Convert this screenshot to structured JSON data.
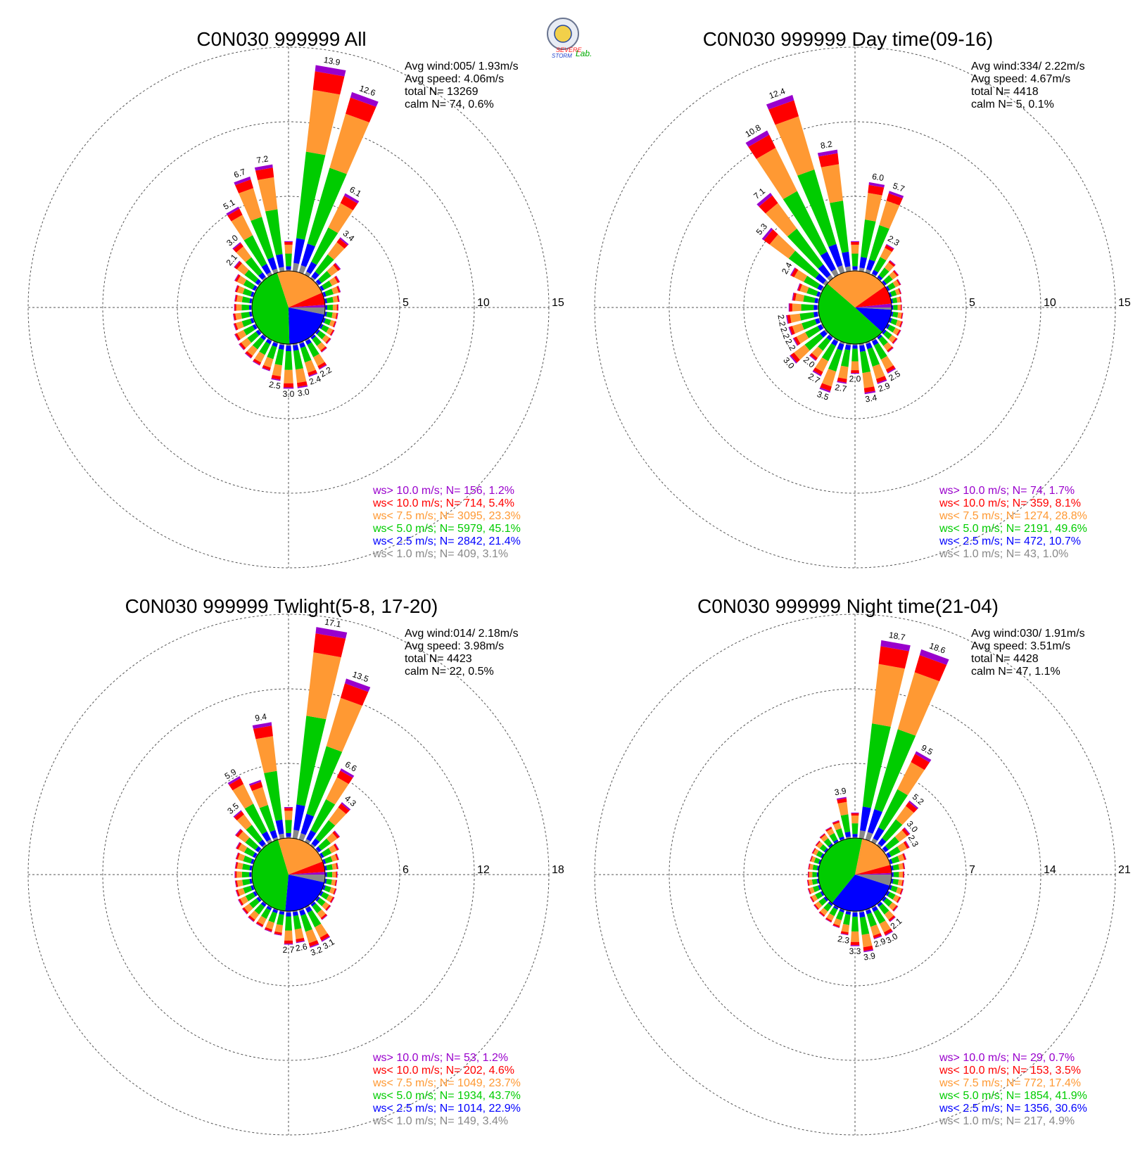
{
  "logo": {
    "text_line1": "SEVERE",
    "text_line2": "STORM",
    "text_line3": "Lab."
  },
  "legend_colors": {
    "gt10": "#9900cc",
    "lt10": "#ff0000",
    "lt75": "#ff9933",
    "lt50": "#00cc00",
    "lt25": "#0000ff",
    "lt10ms": "#888888"
  },
  "chart_data": [
    {
      "type": "windrose",
      "title": "C0N030 999999 All",
      "info": {
        "avg_wind": "Avg wind:005/ 1.93m/s",
        "avg_speed": "Avg speed: 4.06m/s",
        "total_n": "total N=      13269",
        "calm_n": "calm N=     74,   0.6%"
      },
      "rings": [
        5,
        10,
        15
      ],
      "ring_labels": [
        "5",
        "10",
        "15"
      ],
      "legend": [
        "ws> 10.0 m/s; N=   156,  1.2%",
        "ws< 10.0 m/s; N=   714,  5.4%",
        "ws<  7.5 m/s; N=  3095, 23.3%",
        "ws<  5.0 m/s; N=  5979, 45.1%",
        "ws<  2.5 m/s; N=  2842, 21.4%",
        "ws<  1.0 m/s; N=   409,  3.1%"
      ],
      "pie": [
        3.1,
        21.4,
        45.1,
        23.3,
        5.4,
        1.2
      ],
      "directions": [
        {
          "dir": 10,
          "total": 13.9,
          "label": "13.9"
        },
        {
          "dir": 20,
          "total": 12.6,
          "label": "12.6"
        },
        {
          "dir": 30,
          "total": 6.1,
          "label": "6.1"
        },
        {
          "dir": 40,
          "total": 3.4,
          "label": "3.4"
        },
        {
          "dir": 50,
          "total": 1.9
        },
        {
          "dir": 60,
          "total": 1.4
        },
        {
          "dir": 70,
          "total": 1.2
        },
        {
          "dir": 80,
          "total": 1.0
        },
        {
          "dir": 90,
          "total": 0.9
        },
        {
          "dir": 100,
          "total": 0.9
        },
        {
          "dir": 110,
          "total": 0.9
        },
        {
          "dir": 120,
          "total": 1.0
        },
        {
          "dir": 130,
          "total": 1.1
        },
        {
          "dir": 140,
          "total": 1.3
        },
        {
          "dir": 150,
          "total": 2.2,
          "label": "2.2"
        },
        {
          "dir": 160,
          "total": 2.4,
          "label": "2.4"
        },
        {
          "dir": 170,
          "total": 3.0,
          "label": "3.0"
        },
        {
          "dir": 180,
          "total": 3.0,
          "label": "3.0"
        },
        {
          "dir": 190,
          "total": 2.5,
          "label": "2.5"
        },
        {
          "dir": 200,
          "total": 2.0
        },
        {
          "dir": 210,
          "total": 1.9
        },
        {
          "dir": 220,
          "total": 1.8
        },
        {
          "dir": 230,
          "total": 1.7
        },
        {
          "dir": 240,
          "total": 1.6
        },
        {
          "dir": 250,
          "total": 1.4
        },
        {
          "dir": 260,
          "total": 1.3
        },
        {
          "dir": 270,
          "total": 1.2
        },
        {
          "dir": 280,
          "total": 1.2
        },
        {
          "dir": 290,
          "total": 1.3
        },
        {
          "dir": 300,
          "total": 1.6
        },
        {
          "dir": 310,
          "total": 2.1,
          "label": "2.1"
        },
        {
          "dir": 320,
          "total": 3.0,
          "label": "3.0"
        },
        {
          "dir": 330,
          "total": 5.1,
          "label": "5.1"
        },
        {
          "dir": 340,
          "total": 6.7,
          "label": "6.7"
        },
        {
          "dir": 350,
          "total": 7.2,
          "label": "7.2"
        },
        {
          "dir": 360,
          "total": 2.0
        }
      ]
    },
    {
      "type": "windrose",
      "title": "C0N030 999999 Day time(09-16)",
      "info": {
        "avg_wind": "Avg wind:334/ 2.22m/s",
        "avg_speed": "Avg speed: 4.67m/s",
        "total_n": "total N=       4418",
        "calm_n": "calm N=      5,   0.1%"
      },
      "rings": [
        5,
        10,
        15
      ],
      "ring_labels": [
        "5",
        "10",
        "15"
      ],
      "legend": [
        "ws> 10.0 m/s; N=    74,  1.7%",
        "ws< 10.0 m/s; N=   359,  8.1%",
        "ws<  7.5 m/s; N=  1274, 28.8%",
        "ws<  5.0 m/s; N=  2191, 49.6%",
        "ws<  2.5 m/s; N=   472, 10.7%",
        "ws<  1.0 m/s; N=    43,  1.0%"
      ],
      "pie": [
        1.0,
        10.7,
        49.6,
        28.8,
        8.1,
        1.7
      ],
      "directions": [
        {
          "dir": 10,
          "total": 6.0,
          "label": "6.0"
        },
        {
          "dir": 20,
          "total": 5.7,
          "label": "5.7"
        },
        {
          "dir": 30,
          "total": 2.3,
          "label": "2.3"
        },
        {
          "dir": 40,
          "total": 1.5
        },
        {
          "dir": 50,
          "total": 1.2
        },
        {
          "dir": 60,
          "total": 1.0
        },
        {
          "dir": 70,
          "total": 0.8
        },
        {
          "dir": 80,
          "total": 0.7
        },
        {
          "dir": 90,
          "total": 0.7
        },
        {
          "dir": 100,
          "total": 0.8
        },
        {
          "dir": 110,
          "total": 0.9
        },
        {
          "dir": 120,
          "total": 1.0
        },
        {
          "dir": 130,
          "total": 1.1
        },
        {
          "dir": 140,
          "total": 1.3
        },
        {
          "dir": 150,
          "total": 2.5,
          "label": "2.5"
        },
        {
          "dir": 160,
          "total": 2.9,
          "label": "2.9"
        },
        {
          "dir": 170,
          "total": 3.4,
          "label": "3.4"
        },
        {
          "dir": 180,
          "total": 2.0,
          "label": "2.0"
        },
        {
          "dir": 190,
          "total": 2.7,
          "label": "2.7"
        },
        {
          "dir": 200,
          "total": 3.5,
          "label": "3.5"
        },
        {
          "dir": 210,
          "total": 2.7,
          "label": "2.7"
        },
        {
          "dir": 220,
          "total": 2.0,
          "label": "2.0"
        },
        {
          "dir": 230,
          "total": 3.0,
          "label": "3.0"
        },
        {
          "dir": 240,
          "total": 2.2,
          "label": "2.2"
        },
        {
          "dir": 250,
          "total": 2.2,
          "label": "2.2"
        },
        {
          "dir": 260,
          "total": 2.2,
          "label": "2.2"
        },
        {
          "dir": 270,
          "total": 2.0
        },
        {
          "dir": 280,
          "total": 1.8
        },
        {
          "dir": 290,
          "total": 1.6
        },
        {
          "dir": 300,
          "total": 2.4,
          "label": "2.4"
        },
        {
          "dir": 310,
          "total": 5.3,
          "label": "5.3"
        },
        {
          "dir": 320,
          "total": 7.1,
          "label": "7.1"
        },
        {
          "dir": 330,
          "total": 10.8,
          "label": "10.8"
        },
        {
          "dir": 340,
          "total": 12.4,
          "label": "12.4"
        },
        {
          "dir": 350,
          "total": 8.2,
          "label": "8.2"
        },
        {
          "dir": 360,
          "total": 2.0
        }
      ]
    },
    {
      "type": "windrose",
      "title": "C0N030 999999 Twlight(5-8, 17-20)",
      "info": {
        "avg_wind": "Avg wind:014/ 2.18m/s",
        "avg_speed": "Avg speed: 3.98m/s",
        "total_n": "total N=       4423",
        "calm_n": "calm N=     22,   0.5%"
      },
      "rings": [
        6,
        12,
        18
      ],
      "ring_labels": [
        "6",
        "12",
        "18"
      ],
      "legend": [
        "ws> 10.0 m/s; N=    53,  1.2%",
        "ws< 10.0 m/s; N=   202,  4.6%",
        "ws<  7.5 m/s; N=  1049, 23.7%",
        "ws<  5.0 m/s; N=  1934, 43.7%",
        "ws<  2.5 m/s; N=  1014, 22.9%",
        "ws<  1.0 m/s; N=   149,  3.4%"
      ],
      "pie": [
        3.4,
        22.9,
        43.7,
        23.7,
        4.6,
        1.2
      ],
      "directions": [
        {
          "dir": 10,
          "total": 17.1,
          "label": "17.1"
        },
        {
          "dir": 20,
          "total": 13.5,
          "label": "13.5"
        },
        {
          "dir": 30,
          "total": 6.6,
          "label": "6.6"
        },
        {
          "dir": 40,
          "total": 4.3,
          "label": "4.3"
        },
        {
          "dir": 50,
          "total": 2.2
        },
        {
          "dir": 60,
          "total": 1.6
        },
        {
          "dir": 70,
          "total": 1.3
        },
        {
          "dir": 80,
          "total": 1.1
        },
        {
          "dir": 90,
          "total": 1.0
        },
        {
          "dir": 100,
          "total": 1.0
        },
        {
          "dir": 110,
          "total": 1.1
        },
        {
          "dir": 120,
          "total": 1.2
        },
        {
          "dir": 130,
          "total": 1.3
        },
        {
          "dir": 140,
          "total": 1.6
        },
        {
          "dir": 150,
          "total": 3.1,
          "label": "3.1"
        },
        {
          "dir": 160,
          "total": 3.2,
          "label": "3.2"
        },
        {
          "dir": 170,
          "total": 2.6,
          "label": "2.6"
        },
        {
          "dir": 180,
          "total": 2.7,
          "label": "2.7"
        },
        {
          "dir": 190,
          "total": 2.0
        },
        {
          "dir": 200,
          "total": 1.9
        },
        {
          "dir": 210,
          "total": 1.8
        },
        {
          "dir": 220,
          "total": 1.8
        },
        {
          "dir": 230,
          "total": 1.7
        },
        {
          "dir": 240,
          "total": 1.6
        },
        {
          "dir": 250,
          "total": 1.5
        },
        {
          "dir": 260,
          "total": 1.4
        },
        {
          "dir": 270,
          "total": 1.4
        },
        {
          "dir": 280,
          "total": 1.4
        },
        {
          "dir": 290,
          "total": 1.5
        },
        {
          "dir": 300,
          "total": 1.8
        },
        {
          "dir": 310,
          "total": 2.4
        },
        {
          "dir": 320,
          "total": 3.5,
          "label": "3.5"
        },
        {
          "dir": 330,
          "total": 5.9,
          "label": "5.9"
        },
        {
          "dir": 340,
          "total": 5.0
        },
        {
          "dir": 350,
          "total": 9.4,
          "label": "9.4"
        },
        {
          "dir": 360,
          "total": 2.5
        }
      ]
    },
    {
      "type": "windrose",
      "title": "C0N030 999999 Night time(21-04)",
      "info": {
        "avg_wind": "Avg wind:030/ 1.91m/s",
        "avg_speed": "Avg speed: 3.51m/s",
        "total_n": "total N=       4428",
        "calm_n": "calm N=     47,   1.1%"
      },
      "rings": [
        7,
        14,
        21
      ],
      "ring_labels": [
        "7",
        "14",
        "21"
      ],
      "legend": [
        "ws> 10.0 m/s; N=    29,  0.7%",
        "ws< 10.0 m/s; N=   153,  3.5%",
        "ws<  7.5 m/s; N=   772, 17.4%",
        "ws<  5.0 m/s; N=  1854, 41.9%",
        "ws<  2.5 m/s; N=  1356, 30.6%",
        "ws<  1.0 m/s; N=   217,  4.9%"
      ],
      "pie": [
        4.9,
        30.6,
        41.9,
        17.4,
        3.5,
        0.7
      ],
      "directions": [
        {
          "dir": 10,
          "total": 18.7,
          "label": "18.7"
        },
        {
          "dir": 20,
          "total": 18.6,
          "label": "18.6"
        },
        {
          "dir": 30,
          "total": 9.5,
          "label": "9.5"
        },
        {
          "dir": 40,
          "total": 5.2,
          "label": "5.2"
        },
        {
          "dir": 50,
          "total": 3.0,
          "label": "3.0"
        },
        {
          "dir": 60,
          "total": 2.3,
          "label": "2.3"
        },
        {
          "dir": 70,
          "total": 1.6
        },
        {
          "dir": 80,
          "total": 1.3
        },
        {
          "dir": 90,
          "total": 1.2
        },
        {
          "dir": 100,
          "total": 1.2
        },
        {
          "dir": 110,
          "total": 1.3
        },
        {
          "dir": 120,
          "total": 1.4
        },
        {
          "dir": 130,
          "total": 1.6
        },
        {
          "dir": 140,
          "total": 2.1,
          "label": "2.1"
        },
        {
          "dir": 150,
          "total": 3.0,
          "label": "3.0"
        },
        {
          "dir": 160,
          "total": 2.9,
          "label": "2.9"
        },
        {
          "dir": 170,
          "total": 3.9,
          "label": "3.9"
        },
        {
          "dir": 180,
          "total": 3.3,
          "label": "3.3"
        },
        {
          "dir": 190,
          "total": 2.3,
          "label": "2.3"
        },
        {
          "dir": 200,
          "total": 1.8
        },
        {
          "dir": 210,
          "total": 1.6
        },
        {
          "dir": 220,
          "total": 1.5
        },
        {
          "dir": 230,
          "total": 1.4
        },
        {
          "dir": 240,
          "total": 1.3
        },
        {
          "dir": 250,
          "total": 1.2
        },
        {
          "dir": 260,
          "total": 1.1
        },
        {
          "dir": 270,
          "total": 1.0
        },
        {
          "dir": 280,
          "total": 1.0
        },
        {
          "dir": 290,
          "total": 1.0
        },
        {
          "dir": 300,
          "total": 1.1
        },
        {
          "dir": 310,
          "total": 1.2
        },
        {
          "dir": 320,
          "total": 1.4
        },
        {
          "dir": 330,
          "total": 1.6
        },
        {
          "dir": 340,
          "total": 1.9
        },
        {
          "dir": 350,
          "total": 3.9,
          "label": "3.9"
        },
        {
          "dir": 360,
          "total": 2.4
        }
      ]
    }
  ]
}
